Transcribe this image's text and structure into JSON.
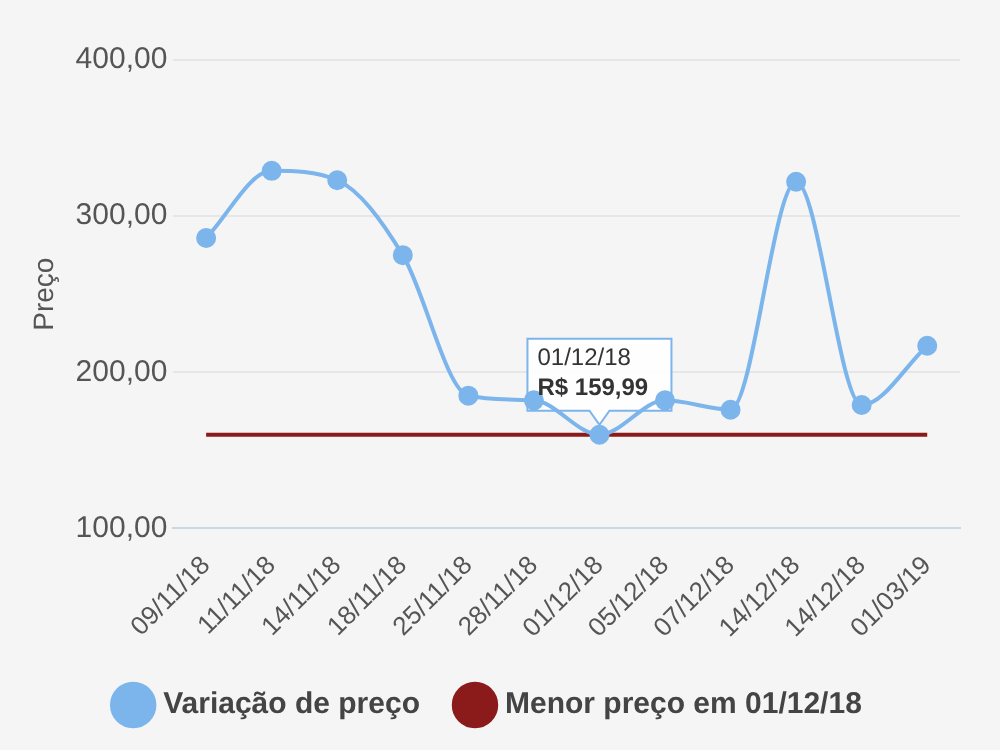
{
  "chart_data": {
    "type": "line",
    "ylabel": "Preço",
    "categories": [
      "09/11/18",
      "11/11/18",
      "14/11/18",
      "18/11/18",
      "25/11/18",
      "28/11/18",
      "01/12/18",
      "05/12/18",
      "07/12/18",
      "14/12/18",
      "14/12/18",
      "01/03/19"
    ],
    "series": [
      {
        "name": "Variação de preço",
        "color": "#7cb5ec",
        "marker": "circle",
        "values": [
          286,
          329,
          323,
          275,
          185,
          182,
          159.99,
          182,
          176,
          322,
          179,
          217
        ]
      },
      {
        "name": "Menor preço em 01/12/18",
        "color": "#8b1a1a",
        "marker": "none",
        "values": [
          159.99,
          159.99,
          159.99,
          159.99,
          159.99,
          159.99,
          159.99,
          159.99,
          159.99,
          159.99,
          159.99,
          159.99
        ]
      }
    ],
    "ylim": [
      100,
      400
    ],
    "yticks": [
      {
        "value": 100,
        "label": "100,00"
      },
      {
        "value": 200,
        "label": "200,00"
      },
      {
        "value": 300,
        "label": "300,00"
      },
      {
        "value": 400,
        "label": "400,00"
      }
    ],
    "grid": "y",
    "legend": "bottom",
    "annotations": [
      {
        "text": "01/12/18\nR$ 159,99",
        "x": "01/12/18",
        "y": 159.99
      }
    ]
  }
}
